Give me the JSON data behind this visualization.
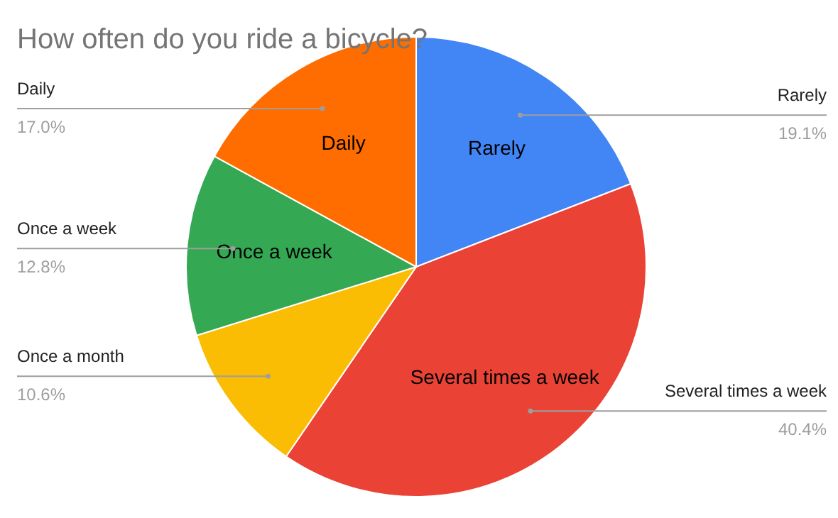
{
  "chart_data": {
    "type": "pie",
    "title": "How often do you ride a bicycle?",
    "categories": [
      "Rarely",
      "Several times a week",
      "Once a month",
      "Once a week",
      "Daily"
    ],
    "values": [
      19.1,
      40.4,
      10.6,
      12.8,
      17.0
    ],
    "colors": [
      "#4285f4",
      "#ea4335",
      "#fbbc04",
      "#34a853",
      "#ff6d01"
    ],
    "value_labels": [
      "19.1%",
      "40.4%",
      "10.6%",
      "12.8%",
      "17.0%"
    ]
  }
}
